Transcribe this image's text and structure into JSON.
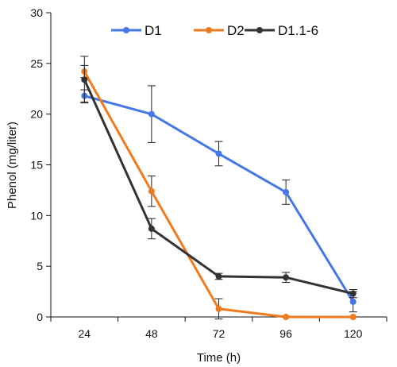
{
  "chart_data": {
    "type": "line",
    "title": "",
    "xlabel": "Time (h)",
    "ylabel": "Phenol (mg/liter)",
    "categories": [
      "24",
      "48",
      "72",
      "96",
      "120"
    ],
    "ylim": [
      0,
      30
    ],
    "yticks": [
      "0",
      "5",
      "10",
      "15",
      "20",
      "25",
      "30"
    ],
    "grid": false,
    "legend_position": "top",
    "series": [
      {
        "name": "D1",
        "color": "#4577e6",
        "values": [
          21.8,
          20.0,
          16.1,
          12.3,
          1.5
        ],
        "errors": [
          0.6,
          2.8,
          1.2,
          1.2,
          1.0
        ]
      },
      {
        "name": "D2",
        "color": "#f07b1f",
        "values": [
          24.2,
          12.4,
          0.8,
          0.0,
          0.0
        ],
        "errors": [
          0.6,
          1.5,
          1.0,
          0.0,
          0.0
        ]
      },
      {
        "name": "D1.1-6",
        "color": "#333333",
        "values": [
          23.4,
          8.7,
          4.0,
          3.9,
          2.3
        ],
        "errors": [
          2.3,
          1.0,
          0.3,
          0.5,
          0.4
        ]
      }
    ]
  }
}
